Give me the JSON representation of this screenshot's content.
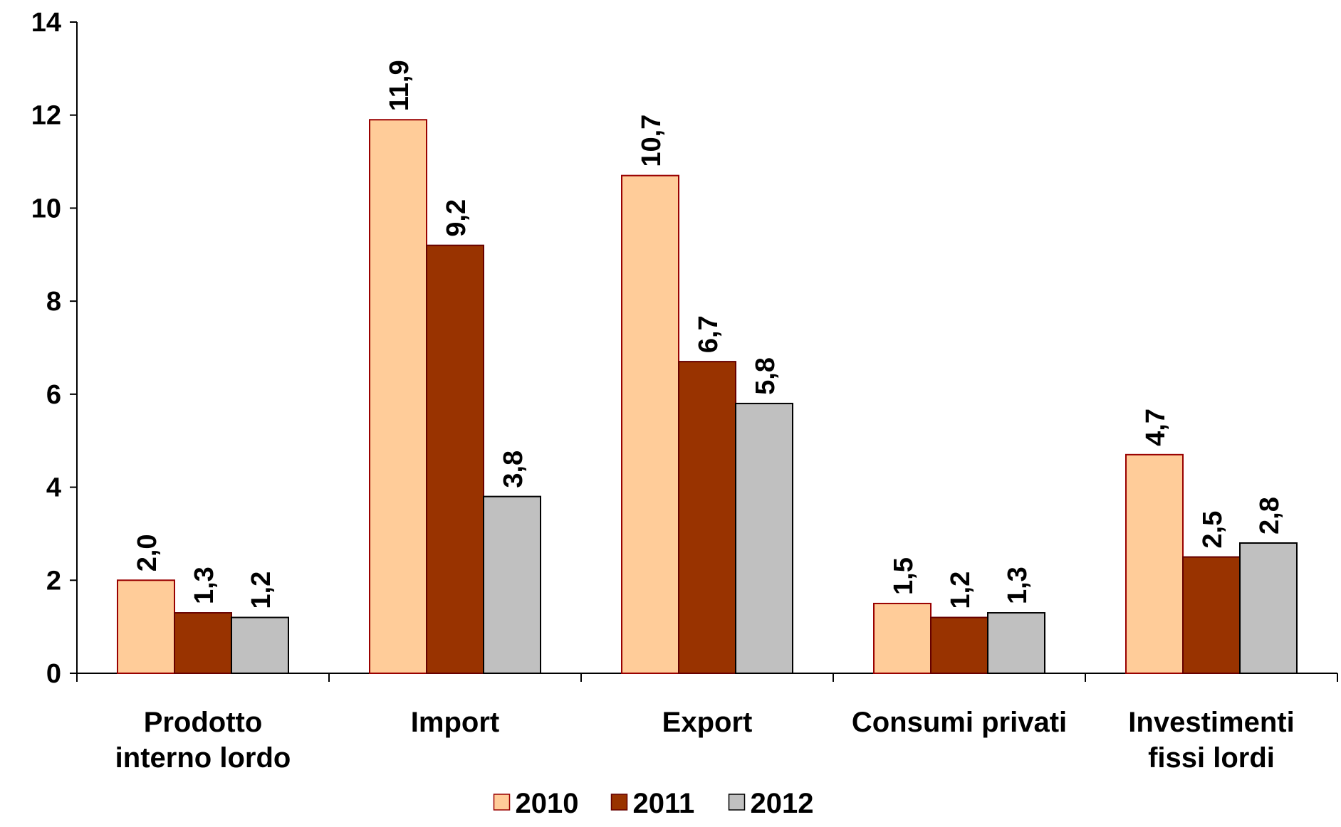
{
  "chart_data": {
    "type": "bar",
    "categories": [
      [
        "Prodotto",
        "interno lordo"
      ],
      [
        "Import"
      ],
      [
        "Export"
      ],
      [
        "Consumi privati"
      ],
      [
        "Investimenti",
        "fissi lordi"
      ]
    ],
    "series": [
      {
        "name": "2010",
        "color": "#FFCC99",
        "stroke": "#990000",
        "values": [
          2.0,
          11.9,
          10.7,
          1.5,
          4.7
        ],
        "value_labels": [
          "2,0",
          "11,9",
          "10,7",
          "1,5",
          "4,7"
        ]
      },
      {
        "name": "2011",
        "color": "#993300",
        "stroke": "#660000",
        "values": [
          1.3,
          9.2,
          6.7,
          1.2,
          2.5
        ],
        "value_labels": [
          "1,3",
          "9,2",
          "6,7",
          "1,2",
          "2,5"
        ]
      },
      {
        "name": "2012",
        "color": "#C0C0C0",
        "stroke": "#000000",
        "values": [
          1.2,
          3.8,
          5.8,
          1.3,
          2.8
        ],
        "value_labels": [
          "1,2",
          "3,8",
          "5,8",
          "1,3",
          "2,8"
        ]
      }
    ],
    "ylim": [
      0,
      14
    ],
    "yticks": [
      0,
      2,
      4,
      6,
      8,
      10,
      12,
      14
    ],
    "grid": false,
    "legend": "bottom"
  }
}
